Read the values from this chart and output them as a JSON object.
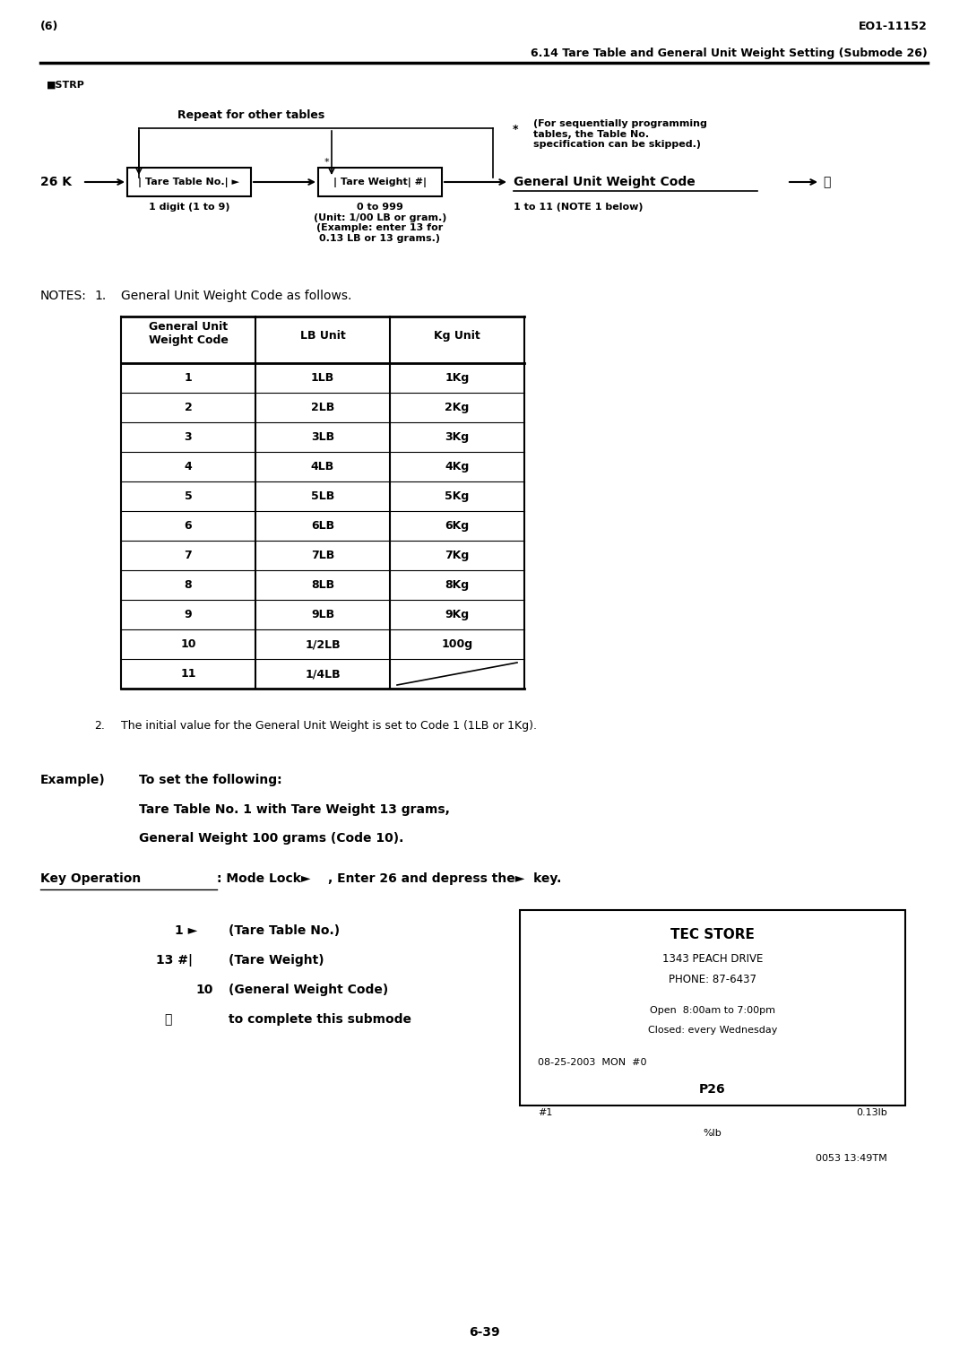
{
  "page_num_left": "(6)",
  "page_num_right": "EO1-11152",
  "section_title": "6.14 Tare Table and General Unit Weight Setting (Submode 26)",
  "repeat_label": "Repeat for other tables",
  "star_note": "(For sequentially programming\ntables, the Table No.\nspecification can be skipped.)",
  "flow_tare_table_sub": "1 digit (1 to 9)",
  "flow_tare_weight_sub": "0 to 999\n(Unit: 1/00 LB or gram.)\n(Example: enter 13 for\n0.13 LB or 13 grams.)",
  "flow_general_sub": "1 to 11 (NOTE 1 below)",
  "note1_text": "General Unit Weight Code as follows.",
  "table_headers": [
    "General Unit\nWeight Code",
    "LB Unit",
    "Kg Unit"
  ],
  "table_rows": [
    [
      "1",
      "1LB",
      "1Kg"
    ],
    [
      "2",
      "2LB",
      "2Kg"
    ],
    [
      "3",
      "3LB",
      "3Kg"
    ],
    [
      "4",
      "4LB",
      "4Kg"
    ],
    [
      "5",
      "5LB",
      "5Kg"
    ],
    [
      "6",
      "6LB",
      "6Kg"
    ],
    [
      "7",
      "7LB",
      "7Kg"
    ],
    [
      "8",
      "8LB",
      "8Kg"
    ],
    [
      "9",
      "9LB",
      "9Kg"
    ],
    [
      "10",
      "1/2LB",
      "100g"
    ],
    [
      "11",
      "1/4LB",
      ""
    ]
  ],
  "note2_text": "The initial value for the General Unit Weight is set to Code 1 (1LB or 1Kg).",
  "receipt_title": "TEC STORE",
  "receipt_addr": "1343 PEACH DRIVE",
  "receipt_phone": "PHONE: 87-6437",
  "receipt_open": "Open  8:00am to 7:00pm",
  "receipt_closed": "Closed: every Wednesday",
  "receipt_date": "08-25-2003  MON  #0",
  "receipt_p26": "P26",
  "receipt_row1_left": "#1",
  "receipt_row1_right": "0.13lb",
  "receipt_row2": "%lb",
  "receipt_footer": "0053 13:49TM",
  "page_footer": "6-39",
  "bg_color": "#ffffff"
}
